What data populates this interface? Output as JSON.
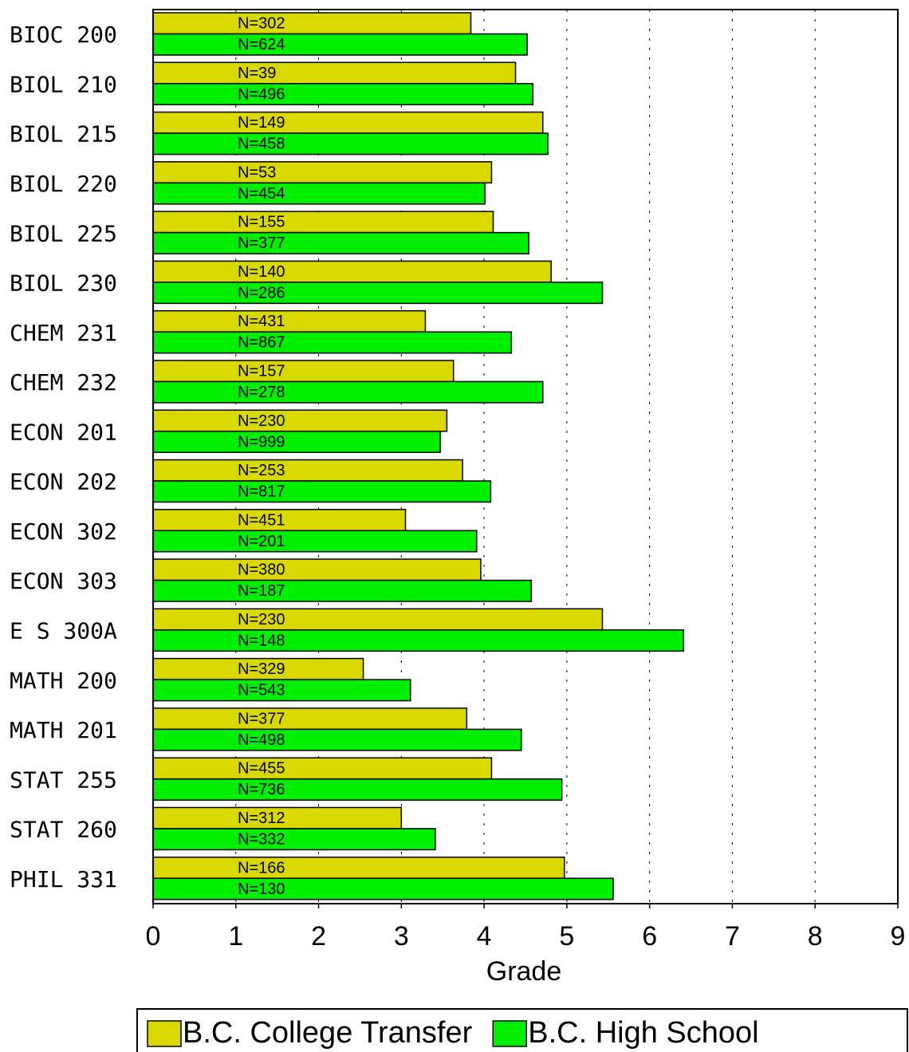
{
  "chart_data": {
    "type": "hbar",
    "categories": [
      "BIOC 200",
      "BIOL 210",
      "BIOL 215",
      "BIOL 220",
      "BIOL 225",
      "BIOL 230",
      "CHEM 231",
      "CHEM 232",
      "ECON 201",
      "ECON 202",
      "ECON 302",
      "ECON 303",
      "E S 300A",
      "MATH 200",
      "MATH 201",
      "STAT 255",
      "STAT 260",
      "PHIL 331"
    ],
    "series": [
      {
        "name": "B.C. College Transfer",
        "color": "#d9d900",
        "values": [
          3.84,
          4.38,
          4.71,
          4.09,
          4.11,
          4.81,
          3.29,
          3.63,
          3.55,
          3.74,
          3.05,
          3.96,
          5.43,
          2.54,
          3.79,
          4.09,
          3.0,
          4.97
        ],
        "bar_labels": [
          "N=302",
          "N=39",
          "N=149",
          "N=53",
          "N=155",
          "N=140",
          "N=431",
          "N=157",
          "N=230",
          "N=253",
          "N=451",
          "N=380",
          "N=230",
          "N=329",
          "N=377",
          "N=455",
          "N=312",
          "N=166"
        ]
      },
      {
        "name": "B.C. High School",
        "color": "#00ee00",
        "values": [
          4.52,
          4.59,
          4.77,
          4.01,
          4.54,
          5.43,
          4.33,
          4.71,
          3.47,
          4.08,
          3.91,
          4.57,
          6.41,
          3.11,
          4.45,
          4.94,
          3.41,
          5.56
        ],
        "bar_labels": [
          "N=624",
          "N=496",
          "N=458",
          "N=454",
          "N=377",
          "N=286",
          "N=867",
          "N=278",
          "N=999",
          "N=817",
          "N=201",
          "N=187",
          "N=148",
          "N=543",
          "N=498",
          "N=736",
          "N=332",
          "N=130"
        ]
      }
    ],
    "xlabel": "Grade",
    "xlim": [
      0,
      9
    ],
    "xticks": [
      0,
      1,
      2,
      3,
      4,
      5,
      6,
      7,
      8,
      9
    ],
    "grid": true,
    "legend": "bottom"
  }
}
